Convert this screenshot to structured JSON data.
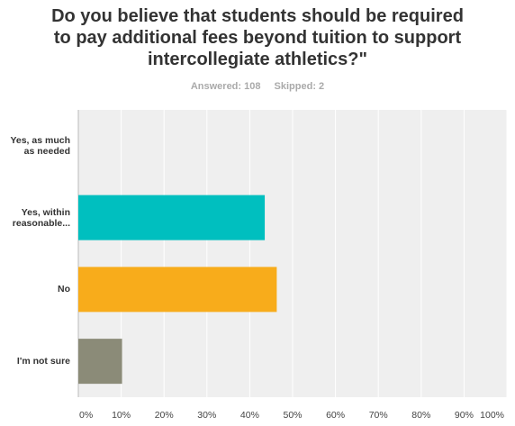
{
  "chart_data": {
    "type": "bar",
    "orientation": "horizontal",
    "title": "Do you believe that students should be required to pay additional fees beyond tuition to support intercollegiate athletics?\"",
    "subtitle": [
      "Answered: 108",
      "Skipped: 2"
    ],
    "categories": [
      "Yes, as much as needed",
      "Yes, within reasonable...",
      "No",
      "I'm not sure"
    ],
    "values": [
      0,
      43.5,
      46.3,
      10.2
    ],
    "colors": [
      "#2b6fb6",
      "#00bfbf",
      "#f8ac1b",
      "#8b8b78"
    ],
    "xlim": [
      0,
      100
    ],
    "xticks": [
      {
        "value": 0,
        "label": "0%"
      },
      {
        "value": 10,
        "label": "10%"
      },
      {
        "value": 20,
        "label": "20%"
      },
      {
        "value": 30,
        "label": "30%"
      },
      {
        "value": 40,
        "label": "40%"
      },
      {
        "value": 50,
        "label": "50%"
      },
      {
        "value": 60,
        "label": "60%"
      },
      {
        "value": 70,
        "label": "70%"
      },
      {
        "value": 80,
        "label": "80%"
      },
      {
        "value": 90,
        "label": "90%"
      },
      {
        "value": 100,
        "label": "100%"
      }
    ],
    "grid": true
  }
}
